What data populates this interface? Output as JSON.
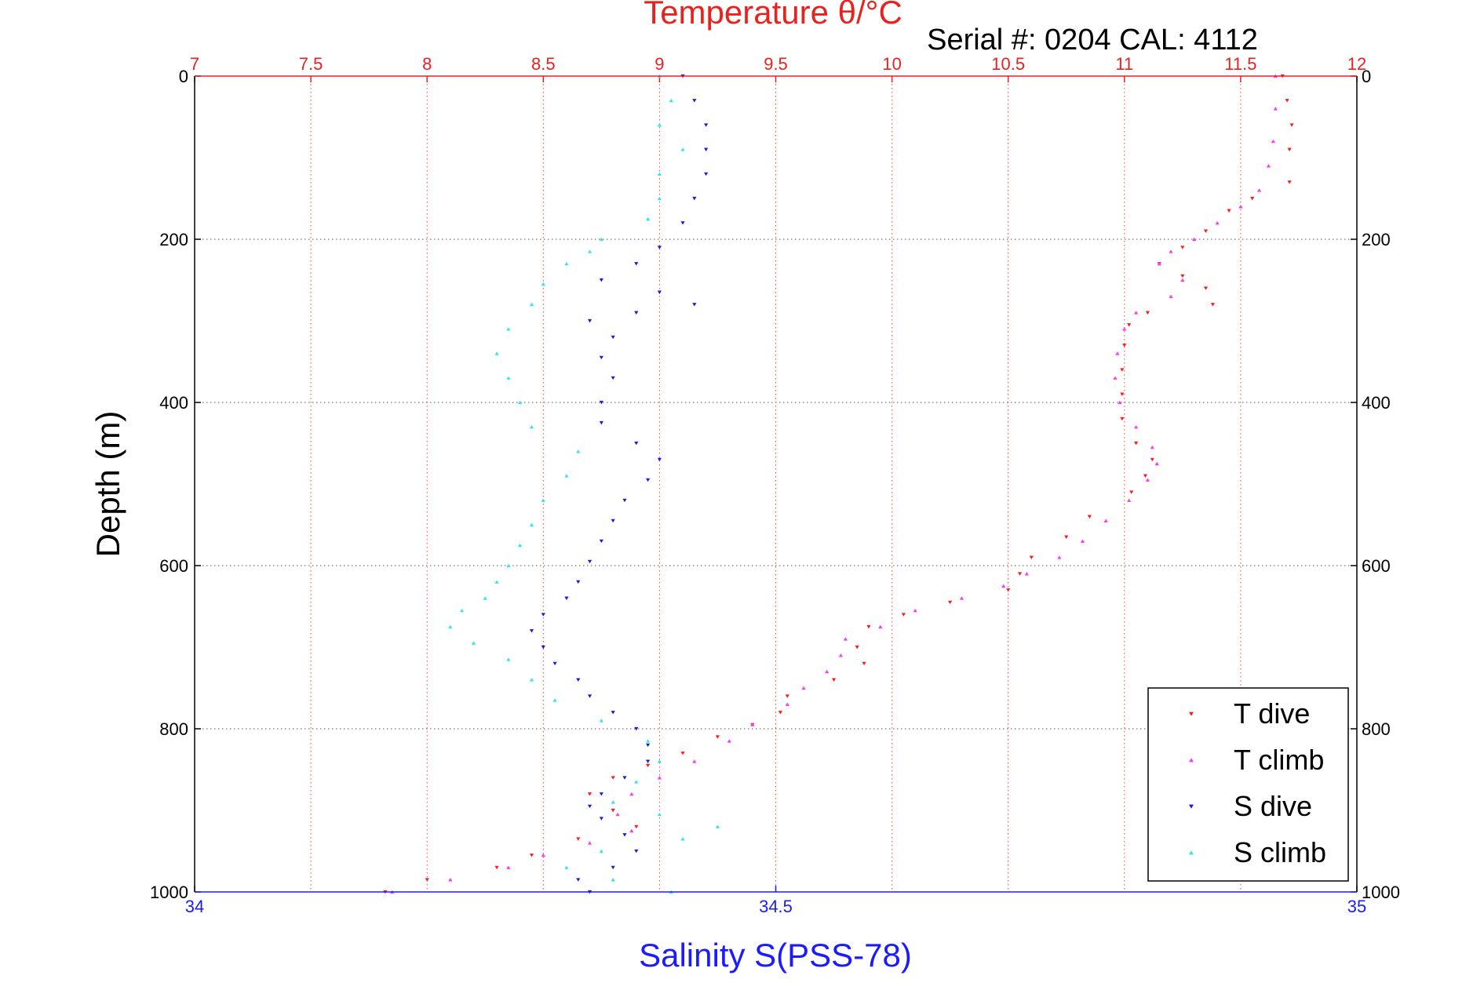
{
  "chart_data": {
    "type": "scatter",
    "title": "Temperature θ/°C",
    "subtitle": "Serial #: 0204  CAL: 4112",
    "xlabel": "Salinity S(PSS-78)",
    "ylabel": "Depth (m)",
    "top_axis": {
      "range": [
        7,
        12
      ],
      "ticks": [
        "7",
        "7.5",
        "8",
        "8.5",
        "9",
        "9.5",
        "10",
        "10.5",
        "11",
        "11.5",
        "12"
      ],
      "tick_values": [
        7,
        7.5,
        8,
        8.5,
        9,
        9.5,
        10,
        10.5,
        11,
        11.5,
        12
      ],
      "color": "#e8231f"
    },
    "bottom_axis": {
      "range": [
        34,
        35
      ],
      "ticks": [
        "34",
        "34.5",
        "35"
      ],
      "tick_values": [
        34,
        34.5,
        35
      ],
      "color": "#1b1bff"
    },
    "depth_axis": {
      "range": [
        0,
        1000
      ],
      "reversed": true,
      "ticks": [
        "0",
        "200",
        "400",
        "600",
        "800",
        "1000"
      ],
      "tick_values": [
        0,
        200,
        400,
        600,
        800,
        1000
      ]
    },
    "grid": true,
    "legend_position": "bottom-right",
    "series": [
      {
        "name": "T dive",
        "axis": "temperature",
        "color": "#ff1a1a",
        "marker": "triangle-down",
        "points": [
          [
            11.68,
            0
          ],
          [
            11.7,
            30
          ],
          [
            11.72,
            60
          ],
          [
            11.71,
            90
          ],
          [
            11.71,
            130
          ],
          [
            11.55,
            150
          ],
          [
            11.45,
            165
          ],
          [
            11.35,
            190
          ],
          [
            11.25,
            210
          ],
          [
            11.15,
            230
          ],
          [
            11.25,
            245
          ],
          [
            11.35,
            260
          ],
          [
            11.38,
            280
          ],
          [
            11.1,
            290
          ],
          [
            11.02,
            305
          ],
          [
            11.0,
            330
          ],
          [
            10.99,
            360
          ],
          [
            10.99,
            390
          ],
          [
            10.99,
            420
          ],
          [
            11.05,
            450
          ],
          [
            11.12,
            470
          ],
          [
            11.09,
            490
          ],
          [
            11.03,
            510
          ],
          [
            10.85,
            540
          ],
          [
            10.75,
            565
          ],
          [
            10.6,
            590
          ],
          [
            10.55,
            610
          ],
          [
            10.5,
            630
          ],
          [
            10.25,
            645
          ],
          [
            10.05,
            660
          ],
          [
            9.9,
            675
          ],
          [
            9.85,
            700
          ],
          [
            9.88,
            720
          ],
          [
            9.75,
            740
          ],
          [
            9.55,
            760
          ],
          [
            9.52,
            780
          ],
          [
            9.4,
            795
          ],
          [
            9.25,
            810
          ],
          [
            9.1,
            830
          ],
          [
            8.95,
            845
          ],
          [
            8.8,
            860
          ],
          [
            8.7,
            880
          ],
          [
            8.8,
            900
          ],
          [
            8.9,
            920
          ],
          [
            8.65,
            935
          ],
          [
            8.45,
            955
          ],
          [
            8.3,
            970
          ],
          [
            8.0,
            985
          ],
          [
            7.82,
            1000
          ]
        ]
      },
      {
        "name": "T climb",
        "axis": "temperature",
        "color": "#ff33ff",
        "marker": "triangle-up",
        "points": [
          [
            11.65,
            0
          ],
          [
            11.65,
            40
          ],
          [
            11.64,
            80
          ],
          [
            11.62,
            110
          ],
          [
            11.58,
            140
          ],
          [
            11.5,
            160
          ],
          [
            11.4,
            180
          ],
          [
            11.3,
            200
          ],
          [
            11.2,
            215
          ],
          [
            11.15,
            230
          ],
          [
            11.25,
            250
          ],
          [
            11.2,
            270
          ],
          [
            11.05,
            290
          ],
          [
            11.0,
            310
          ],
          [
            10.97,
            340
          ],
          [
            10.96,
            370
          ],
          [
            10.98,
            400
          ],
          [
            11.05,
            430
          ],
          [
            11.12,
            455
          ],
          [
            11.14,
            475
          ],
          [
            11.1,
            495
          ],
          [
            11.02,
            520
          ],
          [
            10.92,
            545
          ],
          [
            10.82,
            570
          ],
          [
            10.72,
            590
          ],
          [
            10.58,
            610
          ],
          [
            10.48,
            625
          ],
          [
            10.3,
            640
          ],
          [
            10.1,
            655
          ],
          [
            9.95,
            675
          ],
          [
            9.8,
            690
          ],
          [
            9.78,
            710
          ],
          [
            9.72,
            730
          ],
          [
            9.62,
            750
          ],
          [
            9.55,
            770
          ],
          [
            9.4,
            795
          ],
          [
            9.3,
            815
          ],
          [
            9.15,
            840
          ],
          [
            9.0,
            860
          ],
          [
            8.88,
            880
          ],
          [
            8.82,
            905
          ],
          [
            8.88,
            925
          ],
          [
            8.7,
            940
          ],
          [
            8.5,
            955
          ],
          [
            8.35,
            970
          ],
          [
            8.1,
            985
          ],
          [
            7.85,
            1000
          ]
        ]
      },
      {
        "name": "S dive",
        "axis": "salinity",
        "color": "#1a1ad9",
        "marker": "triangle-down",
        "points": [
          [
            34.42,
            0
          ],
          [
            34.43,
            30
          ],
          [
            34.44,
            60
          ],
          [
            34.44,
            90
          ],
          [
            34.44,
            120
          ],
          [
            34.43,
            150
          ],
          [
            34.42,
            180
          ],
          [
            34.4,
            210
          ],
          [
            34.38,
            230
          ],
          [
            34.35,
            250
          ],
          [
            34.4,
            265
          ],
          [
            34.43,
            280
          ],
          [
            34.38,
            290
          ],
          [
            34.34,
            300
          ],
          [
            34.36,
            320
          ],
          [
            34.35,
            345
          ],
          [
            34.36,
            370
          ],
          [
            34.35,
            400
          ],
          [
            34.35,
            425
          ],
          [
            34.38,
            450
          ],
          [
            34.4,
            470
          ],
          [
            34.39,
            495
          ],
          [
            34.37,
            520
          ],
          [
            34.36,
            545
          ],
          [
            34.35,
            570
          ],
          [
            34.34,
            595
          ],
          [
            34.33,
            620
          ],
          [
            34.32,
            640
          ],
          [
            34.3,
            660
          ],
          [
            34.29,
            680
          ],
          [
            34.3,
            700
          ],
          [
            34.31,
            720
          ],
          [
            34.33,
            740
          ],
          [
            34.34,
            760
          ],
          [
            34.36,
            780
          ],
          [
            34.38,
            800
          ],
          [
            34.39,
            820
          ],
          [
            34.39,
            840
          ],
          [
            34.37,
            860
          ],
          [
            34.35,
            880
          ],
          [
            34.34,
            895
          ],
          [
            34.35,
            910
          ],
          [
            34.37,
            930
          ],
          [
            34.38,
            950
          ],
          [
            34.36,
            970
          ],
          [
            34.33,
            985
          ],
          [
            34.34,
            1000
          ]
        ]
      },
      {
        "name": "S climb",
        "axis": "salinity",
        "color": "#33e6e6",
        "marker": "triangle-up",
        "points": [
          [
            34.4,
            0
          ],
          [
            34.41,
            30
          ],
          [
            34.4,
            60
          ],
          [
            34.42,
            90
          ],
          [
            34.4,
            120
          ],
          [
            34.4,
            150
          ],
          [
            34.39,
            175
          ],
          [
            34.35,
            200
          ],
          [
            34.34,
            215
          ],
          [
            34.32,
            230
          ],
          [
            34.3,
            255
          ],
          [
            34.29,
            280
          ],
          [
            34.27,
            310
          ],
          [
            34.26,
            340
          ],
          [
            34.27,
            370
          ],
          [
            34.28,
            400
          ],
          [
            34.29,
            430
          ],
          [
            34.33,
            460
          ],
          [
            34.32,
            490
          ],
          [
            34.3,
            520
          ],
          [
            34.29,
            550
          ],
          [
            34.28,
            575
          ],
          [
            34.27,
            600
          ],
          [
            34.26,
            620
          ],
          [
            34.25,
            640
          ],
          [
            34.23,
            655
          ],
          [
            34.22,
            675
          ],
          [
            34.24,
            695
          ],
          [
            34.27,
            715
          ],
          [
            34.29,
            740
          ],
          [
            34.31,
            765
          ],
          [
            34.35,
            790
          ],
          [
            34.39,
            815
          ],
          [
            34.4,
            840
          ],
          [
            34.38,
            865
          ],
          [
            34.36,
            890
          ],
          [
            34.4,
            905
          ],
          [
            34.45,
            920
          ],
          [
            34.42,
            935
          ],
          [
            34.35,
            950
          ],
          [
            34.32,
            970
          ],
          [
            34.36,
            985
          ],
          [
            34.41,
            1000
          ]
        ]
      }
    ]
  }
}
